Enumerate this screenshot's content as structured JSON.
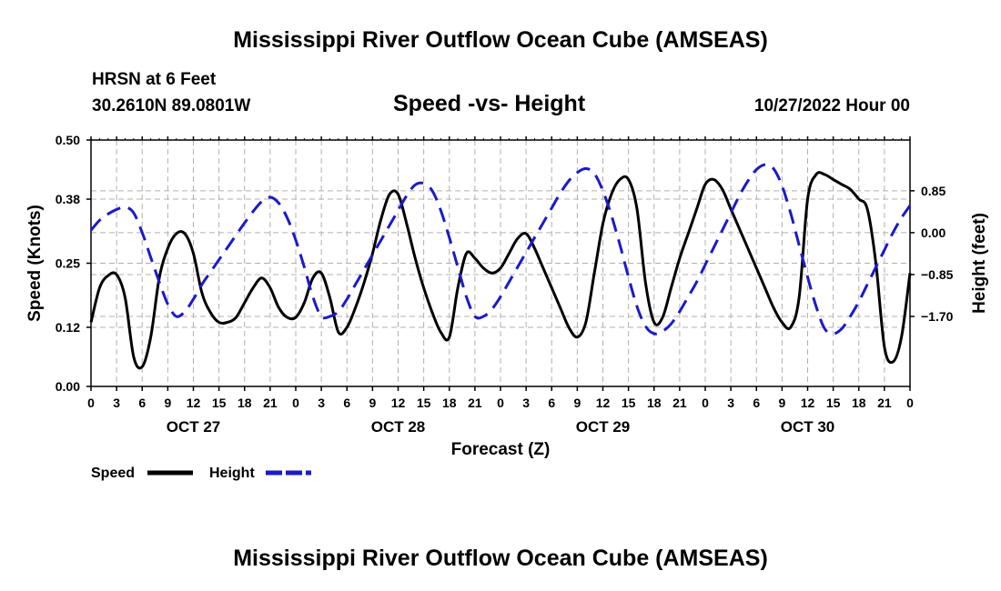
{
  "header": {
    "main_title": "Mississippi River Outflow Ocean Cube (AMSEAS)",
    "station": "HRSN at 6 Feet",
    "coords": "30.2610N  89.0801W",
    "chart_title": "Speed -vs- Height",
    "date": "10/27/2022 Hour 00"
  },
  "footer": {
    "main_title": "Mississippi River Outflow Ocean Cube (AMSEAS)"
  },
  "chart_data": {
    "type": "line",
    "title": "Speed -vs- Height",
    "xlabel": "Forecast (Z)",
    "ylabel_left": "Speed (Knots)",
    "ylabel_right": "Height (feet)",
    "x_range_hours": [
      0,
      96
    ],
    "x_tick_labels": [
      "0",
      "3",
      "6",
      "9",
      "12",
      "15",
      "18",
      "21",
      "0",
      "3",
      "6",
      "9",
      "12",
      "15",
      "18",
      "21",
      "0",
      "3",
      "6",
      "9",
      "12",
      "15",
      "18",
      "21",
      "0",
      "3",
      "6",
      "9",
      "12",
      "15",
      "18",
      "21",
      "0"
    ],
    "day_labels": [
      {
        "label": "OCT 27",
        "hour": 12
      },
      {
        "label": "OCT 28",
        "hour": 36
      },
      {
        "label": "OCT 29",
        "hour": 60
      },
      {
        "label": "OCT 30",
        "hour": 84
      }
    ],
    "ylim_left": [
      0,
      0.5
    ],
    "yticks_left": [
      0.0,
      0.12,
      0.25,
      0.38,
      0.5
    ],
    "ytick_labels_left": [
      "0.00",
      "0.12",
      "0.25",
      "0.38",
      "0.50"
    ],
    "ylim_right": [
      -3.12,
      1.88
    ],
    "yticks_right": [
      -1.7,
      -0.85,
      0.0,
      0.85
    ],
    "ytick_labels_right": [
      "−1.70",
      "−0.85",
      "0.00",
      "0.85"
    ],
    "grid": true,
    "series": [
      {
        "name": "Speed",
        "axis": "left",
        "color": "#000000",
        "dash": "solid",
        "x": [
          0,
          1,
          2,
          3,
          4,
          5,
          6,
          7,
          8,
          9,
          10,
          11,
          12,
          13,
          14,
          15,
          16,
          17,
          18,
          19,
          20,
          21,
          22,
          23,
          24,
          25,
          26,
          27,
          28,
          29,
          30,
          31,
          32,
          33,
          34,
          35,
          36,
          37,
          38,
          39,
          40,
          41,
          42,
          43,
          44,
          45,
          46,
          47,
          48,
          49,
          50,
          51,
          52,
          53,
          54,
          55,
          56,
          57,
          58,
          59,
          60,
          61,
          62,
          63,
          64,
          65,
          66,
          67,
          68,
          69,
          70,
          71,
          72,
          73,
          74,
          75,
          76,
          77,
          78,
          79,
          80,
          81,
          82,
          83,
          84,
          85,
          86,
          87,
          88,
          89,
          90,
          91,
          92,
          93,
          94,
          95,
          96
        ],
        "values": [
          0.13,
          0.2,
          0.225,
          0.227,
          0.18,
          0.06,
          0.04,
          0.1,
          0.22,
          0.28,
          0.31,
          0.31,
          0.27,
          0.19,
          0.15,
          0.13,
          0.13,
          0.14,
          0.17,
          0.2,
          0.22,
          0.2,
          0.16,
          0.14,
          0.14,
          0.17,
          0.22,
          0.23,
          0.18,
          0.11,
          0.12,
          0.16,
          0.21,
          0.27,
          0.34,
          0.39,
          0.39,
          0.33,
          0.26,
          0.2,
          0.15,
          0.11,
          0.1,
          0.2,
          0.27,
          0.26,
          0.24,
          0.23,
          0.24,
          0.27,
          0.3,
          0.31,
          0.28,
          0.24,
          0.2,
          0.16,
          0.12,
          0.1,
          0.13,
          0.23,
          0.33,
          0.39,
          0.42,
          0.42,
          0.36,
          0.21,
          0.13,
          0.14,
          0.2,
          0.26,
          0.31,
          0.36,
          0.41,
          0.42,
          0.4,
          0.36,
          0.32,
          0.28,
          0.24,
          0.2,
          0.16,
          0.13,
          0.12,
          0.18,
          0.38,
          0.43,
          0.43,
          0.42,
          0.41,
          0.4,
          0.38,
          0.36,
          0.25,
          0.08,
          0.05,
          0.1,
          0.23
        ]
      },
      {
        "name": "Height",
        "axis": "right",
        "color": "#1a1acc",
        "dash": "dashed",
        "x": [
          0,
          1,
          2,
          3,
          4,
          5,
          6,
          7,
          8,
          9,
          10,
          11,
          12,
          13,
          14,
          15,
          16,
          17,
          18,
          19,
          20,
          21,
          22,
          23,
          24,
          25,
          26,
          27,
          28,
          29,
          30,
          31,
          32,
          33,
          34,
          35,
          36,
          37,
          38,
          39,
          40,
          41,
          42,
          43,
          44,
          45,
          46,
          47,
          48,
          49,
          50,
          51,
          52,
          53,
          54,
          55,
          56,
          57,
          58,
          59,
          60,
          61,
          62,
          63,
          64,
          65,
          66,
          67,
          68,
          69,
          70,
          71,
          72,
          73,
          74,
          75,
          76,
          77,
          78,
          79,
          80,
          81,
          82,
          83,
          84,
          85,
          86,
          87,
          88,
          89,
          90,
          91,
          92,
          93,
          94,
          95,
          96
        ],
        "values": [
          0.05,
          0.25,
          0.38,
          0.47,
          0.52,
          0.4,
          0.0,
          -0.5,
          -1.0,
          -1.45,
          -1.7,
          -1.6,
          -1.35,
          -1.05,
          -0.8,
          -0.55,
          -0.3,
          -0.05,
          0.2,
          0.43,
          0.63,
          0.72,
          0.6,
          0.3,
          -0.15,
          -0.7,
          -1.3,
          -1.7,
          -1.7,
          -1.6,
          -1.35,
          -1.05,
          -0.75,
          -0.45,
          -0.15,
          0.15,
          0.45,
          0.75,
          0.97,
          1.0,
          0.85,
          0.45,
          -0.1,
          -0.7,
          -1.3,
          -1.7,
          -1.7,
          -1.55,
          -1.3,
          -1.0,
          -0.7,
          -0.4,
          -0.1,
          0.2,
          0.5,
          0.8,
          1.05,
          1.22,
          1.3,
          1.2,
          0.85,
          0.35,
          -0.25,
          -0.9,
          -1.5,
          -1.9,
          -2.05,
          -2.0,
          -1.85,
          -1.6,
          -1.3,
          -1.0,
          -0.65,
          -0.3,
          0.05,
          0.4,
          0.75,
          1.05,
          1.28,
          1.38,
          1.3,
          0.95,
          0.4,
          -0.25,
          -0.9,
          -1.5,
          -1.95,
          -2.05,
          -1.95,
          -1.7,
          -1.4,
          -1.05,
          -0.7,
          -0.35,
          0.0,
          0.3,
          0.55
        ]
      }
    ],
    "legend": {
      "position": "bottom-left",
      "items": [
        "Speed",
        "Height"
      ]
    }
  }
}
